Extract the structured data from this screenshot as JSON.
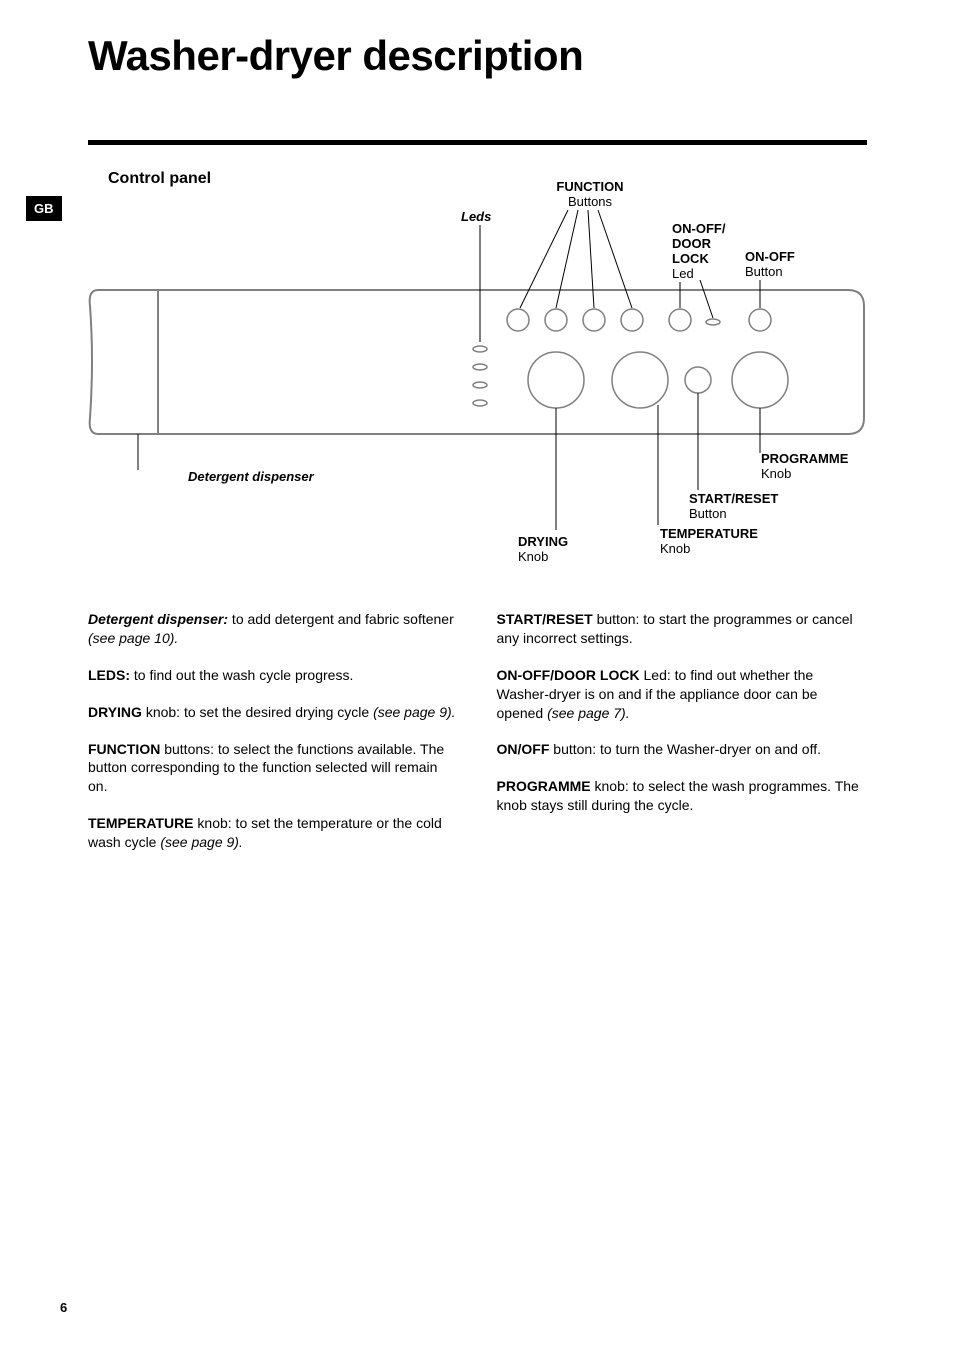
{
  "title": "Washer-dryer description",
  "tab": "GB",
  "section": "Control panel",
  "page_number": "6",
  "colors": {
    "text": "#000000",
    "bg": "#ffffff",
    "panel_stroke": "#808080",
    "led_fill": "#808080"
  },
  "diagram": {
    "labels": {
      "function": {
        "title": "FUNCTION",
        "sub": "Buttons"
      },
      "leds": {
        "title": "Leds"
      },
      "onoff_doorlock": {
        "title1": "ON-OFF/",
        "title2": "DOOR",
        "title3": "LOCK",
        "sub": "Led"
      },
      "onoff": {
        "title": "ON-OFF",
        "sub": "Button"
      },
      "programme": {
        "title": "PROGRAMME",
        "sub": "Knob"
      },
      "start_reset": {
        "title": "START/RESET",
        "sub": "Button"
      },
      "temperature": {
        "title": "TEMPERATURE",
        "sub": "Knob"
      },
      "drying": {
        "title": "DRYING",
        "sub": "Knob"
      },
      "detergent": {
        "title": "Detergent dispenser"
      }
    }
  },
  "body": {
    "left": [
      {
        "lead_style": "bi",
        "lead": "Detergent dispenser:",
        "rest": " to add detergent and fabric softener ",
        "tail_i": "(see page 10)."
      },
      {
        "lead_style": "b",
        "lead": "LEDS:",
        "rest": " to find out the wash cycle progress."
      },
      {
        "lead_style": "b",
        "lead": "DRYING",
        "rest": " knob: to set the desired drying cycle ",
        "tail_i": "(see page 9)."
      },
      {
        "lead_style": "b",
        "lead": "FUNCTION",
        "rest": " buttons: to select the functions available. The button corresponding to the function selected will remain on."
      },
      {
        "lead_style": "b",
        "lead": "TEMPERATURE",
        "rest": " knob: to set the temperature or the cold wash cycle ",
        "tail_i": "(see page 9)."
      }
    ],
    "right": [
      {
        "lead_style": "b",
        "lead": "START/RESET",
        "rest": " button: to start the programmes or cancel any incorrect settings."
      },
      {
        "lead_style": "b",
        "lead": "ON-OFF/DOOR LOCK",
        "rest": " Led: to find out whether the Washer-dryer is on and if the appliance door can be opened ",
        "tail_i": "(see page 7)."
      },
      {
        "lead_style": "b",
        "lead": "ON/OFF",
        "rest": " button: to turn the Washer-dryer on and off."
      },
      {
        "lead_style": "b",
        "lead": "PROGRAMME",
        "rest": " knob: to select the wash programmes. The knob stays still during the cycle."
      }
    ]
  }
}
